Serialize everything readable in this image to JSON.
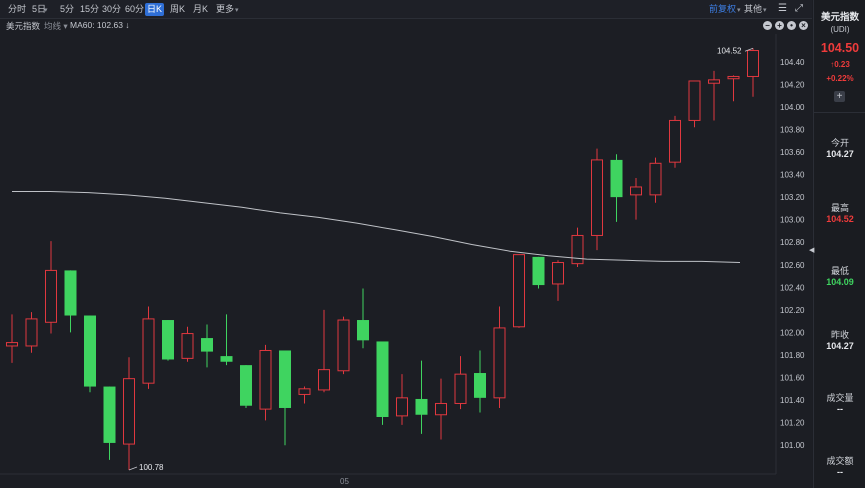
{
  "toolbar": {
    "periods": [
      "分时",
      "5日",
      "5分",
      "15分",
      "30分",
      "60分",
      "日K",
      "周K",
      "月K"
    ],
    "active_period": "日K",
    "more_label": "更多",
    "adjust_label": "前复权",
    "other_label": "其他"
  },
  "indicator": {
    "title": "美元指数",
    "ma_menu_label": "均线",
    "ma_text": "MA60: 102.63 ↓"
  },
  "chart_data": {
    "type": "candlestick",
    "ylim": [
      100.78,
      104.62
    ],
    "y_ticks": [
      "104.40",
      "104.20",
      "104.00",
      "103.80",
      "103.60",
      "103.40",
      "103.20",
      "103.00",
      "102.80",
      "102.60",
      "102.40",
      "102.20",
      "102.00",
      "101.80",
      "101.60",
      "101.40",
      "101.20",
      "101.00"
    ],
    "x_tick_label": "05",
    "max_annotation": "104.52",
    "min_annotation": "100.78",
    "up_color": "#e0383f",
    "down_color": "#3fd460",
    "ma_color": "#bfc2c7",
    "candles": [
      {
        "o": 101.88,
        "h": 102.16,
        "l": 101.73,
        "c": 101.91
      },
      {
        "o": 101.88,
        "h": 102.18,
        "l": 101.82,
        "c": 102.12
      },
      {
        "o": 102.09,
        "h": 102.81,
        "l": 101.99,
        "c": 102.55
      },
      {
        "o": 102.55,
        "h": 102.55,
        "l": 102.0,
        "c": 102.15
      },
      {
        "o": 102.15,
        "h": 102.15,
        "l": 101.47,
        "c": 101.52
      },
      {
        "o": 101.52,
        "h": 101.52,
        "l": 100.87,
        "c": 101.02
      },
      {
        "o": 101.01,
        "h": 101.78,
        "l": 100.78,
        "c": 101.59
      },
      {
        "o": 101.55,
        "h": 102.23,
        "l": 101.5,
        "c": 102.12
      },
      {
        "o": 102.11,
        "h": 102.11,
        "l": 101.75,
        "c": 101.76
      },
      {
        "o": 101.77,
        "h": 102.05,
        "l": 101.74,
        "c": 101.99
      },
      {
        "o": 101.95,
        "h": 102.07,
        "l": 101.69,
        "c": 101.83
      },
      {
        "o": 101.79,
        "h": 102.16,
        "l": 101.71,
        "c": 101.74
      },
      {
        "o": 101.71,
        "h": 101.71,
        "l": 101.33,
        "c": 101.35
      },
      {
        "o": 101.32,
        "h": 101.89,
        "l": 101.22,
        "c": 101.84
      },
      {
        "o": 101.84,
        "h": 101.84,
        "l": 101.0,
        "c": 101.33
      },
      {
        "o": 101.45,
        "h": 101.52,
        "l": 101.37,
        "c": 101.5
      },
      {
        "o": 101.49,
        "h": 102.2,
        "l": 101.47,
        "c": 101.67
      },
      {
        "o": 101.66,
        "h": 102.14,
        "l": 101.63,
        "c": 102.11
      },
      {
        "o": 102.11,
        "h": 102.39,
        "l": 101.86,
        "c": 101.93
      },
      {
        "o": 101.92,
        "h": 101.92,
        "l": 101.18,
        "c": 101.25
      },
      {
        "o": 101.26,
        "h": 101.63,
        "l": 101.18,
        "c": 101.42
      },
      {
        "o": 101.41,
        "h": 101.75,
        "l": 101.1,
        "c": 101.27
      },
      {
        "o": 101.27,
        "h": 101.59,
        "l": 101.05,
        "c": 101.37
      },
      {
        "o": 101.37,
        "h": 101.79,
        "l": 101.32,
        "c": 101.63
      },
      {
        "o": 101.64,
        "h": 101.84,
        "l": 101.29,
        "c": 101.42
      },
      {
        "o": 101.42,
        "h": 102.23,
        "l": 101.33,
        "c": 102.04
      },
      {
        "o": 102.05,
        "h": 102.68,
        "l": 102.04,
        "c": 102.69
      },
      {
        "o": 102.67,
        "h": 102.67,
        "l": 102.39,
        "c": 102.42
      },
      {
        "o": 102.43,
        "h": 102.64,
        "l": 102.28,
        "c": 102.62
      },
      {
        "o": 102.61,
        "h": 102.93,
        "l": 102.58,
        "c": 102.86
      },
      {
        "o": 102.86,
        "h": 103.63,
        "l": 102.73,
        "c": 103.53
      },
      {
        "o": 103.53,
        "h": 103.58,
        "l": 102.98,
        "c": 103.2
      },
      {
        "o": 103.22,
        "h": 103.37,
        "l": 103.0,
        "c": 103.29
      },
      {
        "o": 103.22,
        "h": 103.55,
        "l": 103.15,
        "c": 103.5
      },
      {
        "o": 103.51,
        "h": 103.92,
        "l": 103.46,
        "c": 103.88
      },
      {
        "o": 103.88,
        "h": 104.22,
        "l": 103.82,
        "c": 104.23
      },
      {
        "o": 104.21,
        "h": 104.32,
        "l": 103.88,
        "c": 104.24
      },
      {
        "o": 104.25,
        "h": 104.28,
        "l": 104.05,
        "c": 104.27
      },
      {
        "o": 104.27,
        "h": 104.52,
        "l": 104.09,
        "c": 104.5
      }
    ],
    "ma60": [
      103.25,
      103.25,
      103.24,
      103.22,
      103.19,
      103.15,
      103.11,
      103.06,
      103.02,
      102.97,
      102.91,
      102.85,
      102.78,
      102.72,
      102.68,
      102.65,
      102.64,
      102.63,
      102.63,
      102.62
    ]
  },
  "sidebar": {
    "name": "美元指数",
    "code": "(UDI)",
    "price": "104.50",
    "change": "0.23",
    "change_pct": "+0.22%",
    "stats": [
      {
        "label": "今开",
        "value": "104.27",
        "color": "#e6e8ec"
      },
      {
        "label": "最高",
        "value": "104.52",
        "color": "#ef3b3b"
      },
      {
        "label": "最低",
        "value": "104.09",
        "color": "#3fd460"
      },
      {
        "label": "昨收",
        "value": "104.27",
        "color": "#e6e8ec"
      },
      {
        "label": "成交量",
        "value": "--",
        "color": "#e6e8ec"
      },
      {
        "label": "成交额",
        "value": "--",
        "color": "#e6e8ec"
      }
    ]
  }
}
